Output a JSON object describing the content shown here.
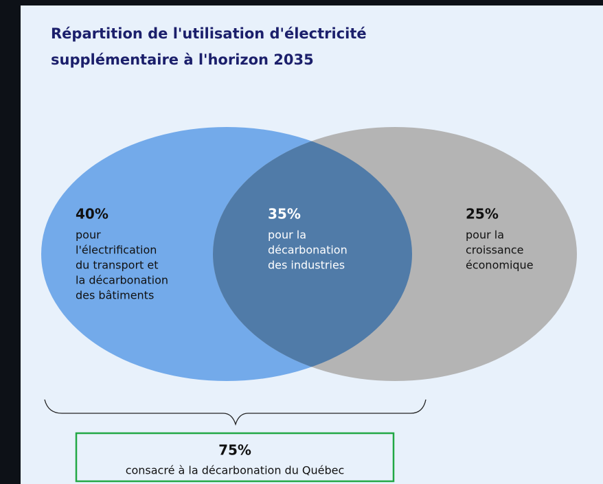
{
  "title": [
    "Répartition de l'utilisation d'électricité",
    "supplémentaire à l'horizon 2035"
  ],
  "regions": [
    {
      "value": "40%",
      "lines": [
        "pour",
        "l'électrification",
        "du transport et",
        "la décarbonation",
        "des bâtiments"
      ]
    },
    {
      "value": "35%",
      "lines": [
        "pour la",
        "décarbonation",
        "des industries"
      ]
    },
    {
      "value": "25%",
      "lines": [
        "pour la",
        "croissance",
        "économique"
      ]
    }
  ],
  "summary": {
    "value": "75%",
    "text": "consacré à la décarbonation du Québec"
  }
}
